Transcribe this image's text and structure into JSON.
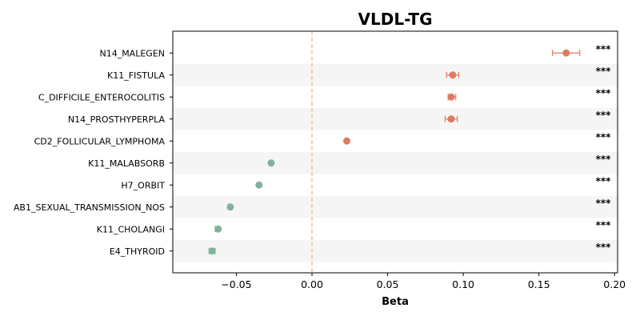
{
  "chart_data": {
    "type": "scatter",
    "title": "VLDL-TG",
    "xlabel": "Beta",
    "ylabel": "",
    "xlim": [
      -0.092,
      0.202
    ],
    "xticks": [
      -0.05,
      0.0,
      0.05,
      0.1,
      0.15,
      0.2
    ],
    "xtick_labels": [
      "−0.05",
      "0.00",
      "0.05",
      "0.10",
      "0.15",
      "0.20"
    ],
    "reference_line": 0.0,
    "grid": false,
    "alternating_row_shading": true,
    "colors": {
      "positive": "#e07a5f",
      "negative": "#81b29a",
      "reference": "#f2c28b",
      "shade": "#f5f5f5"
    },
    "points": [
      {
        "label": "N14_MALEGEN",
        "beta": 0.168,
        "ci_low": 0.159,
        "ci_high": 0.177,
        "sig": "***"
      },
      {
        "label": "K11_FISTULA",
        "beta": 0.093,
        "ci_low": 0.089,
        "ci_high": 0.097,
        "sig": "***"
      },
      {
        "label": "C_DIFFICILE_ENTEROCOLITIS",
        "beta": 0.092,
        "ci_low": 0.09,
        "ci_high": 0.095,
        "sig": "***"
      },
      {
        "label": "N14_PROSTHYPERPLA",
        "beta": 0.092,
        "ci_low": 0.088,
        "ci_high": 0.096,
        "sig": "***"
      },
      {
        "label": "CD2_FOLLICULAR_LYMPHOMA",
        "beta": 0.023,
        "ci_low": 0.022,
        "ci_high": 0.024,
        "sig": "***"
      },
      {
        "label": "K11_MALABSORB",
        "beta": -0.027,
        "ci_low": -0.028,
        "ci_high": -0.026,
        "sig": "***"
      },
      {
        "label": "H7_ORBIT",
        "beta": -0.035,
        "ci_low": -0.036,
        "ci_high": -0.034,
        "sig": "***"
      },
      {
        "label": "AB1_SEXUAL_TRANSMISSION_NOS",
        "beta": -0.054,
        "ci_low": -0.055,
        "ci_high": -0.053,
        "sig": "***"
      },
      {
        "label": "K11_CHOLANGI",
        "beta": -0.062,
        "ci_low": -0.064,
        "ci_high": -0.061,
        "sig": "***"
      },
      {
        "label": "E4_THYROID",
        "beta": -0.066,
        "ci_low": -0.068,
        "ci_high": -0.064,
        "sig": "***"
      }
    ]
  }
}
